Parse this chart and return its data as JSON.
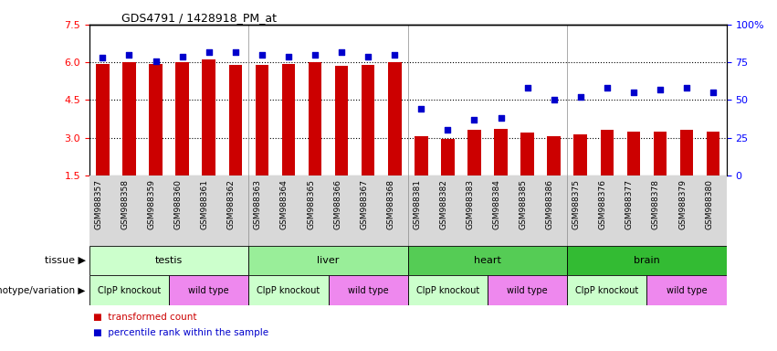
{
  "title": "GDS4791 / 1428918_PM_at",
  "samples": [
    "GSM988357",
    "GSM988358",
    "GSM988359",
    "GSM988360",
    "GSM988361",
    "GSM988362",
    "GSM988363",
    "GSM988364",
    "GSM988365",
    "GSM988366",
    "GSM988367",
    "GSM988368",
    "GSM988381",
    "GSM988382",
    "GSM988383",
    "GSM988384",
    "GSM988385",
    "GSM988386",
    "GSM988375",
    "GSM988376",
    "GSM988377",
    "GSM988378",
    "GSM988379",
    "GSM988380"
  ],
  "bar_values": [
    5.95,
    6.0,
    5.95,
    6.0,
    6.1,
    5.9,
    5.9,
    5.95,
    6.0,
    5.85,
    5.9,
    6.0,
    3.05,
    2.95,
    3.3,
    3.35,
    3.2,
    3.05,
    3.15,
    3.3,
    3.25,
    3.25,
    3.3,
    3.25
  ],
  "percentile_values": [
    78,
    80,
    76,
    79,
    82,
    82,
    80,
    79,
    80,
    82,
    79,
    80,
    44,
    30,
    37,
    38,
    58,
    50,
    52,
    58,
    55,
    57,
    58,
    55
  ],
  "ylim_left": [
    1.5,
    7.5
  ],
  "ylim_right": [
    0,
    100
  ],
  "yticks_left": [
    1.5,
    3.0,
    4.5,
    6.0,
    7.5
  ],
  "yticks_right": [
    0,
    25,
    50,
    75,
    100
  ],
  "ytick_labels_right": [
    "0",
    "25",
    "50",
    "75",
    "100%"
  ],
  "bar_color": "#cc0000",
  "dot_color": "#0000cc",
  "bar_width": 0.5,
  "background_color": "#ffffff",
  "tissue_groups": [
    {
      "label": "testis",
      "start": 0,
      "end": 5,
      "color": "#ccffcc"
    },
    {
      "label": "liver",
      "start": 6,
      "end": 11,
      "color": "#99ee99"
    },
    {
      "label": "heart",
      "start": 12,
      "end": 17,
      "color": "#55cc55"
    },
    {
      "label": "brain",
      "start": 18,
      "end": 23,
      "color": "#33bb33"
    }
  ],
  "geno_groups": [
    {
      "label": "ClpP knockout",
      "start": 0,
      "end": 2,
      "color": "#ccffcc"
    },
    {
      "label": "wild type",
      "start": 3,
      "end": 5,
      "color": "#ee88ee"
    },
    {
      "label": "ClpP knockout",
      "start": 6,
      "end": 8,
      "color": "#ccffcc"
    },
    {
      "label": "wild type",
      "start": 9,
      "end": 11,
      "color": "#ee88ee"
    },
    {
      "label": "ClpP knockout",
      "start": 12,
      "end": 14,
      "color": "#ccffcc"
    },
    {
      "label": "wild type",
      "start": 15,
      "end": 17,
      "color": "#ee88ee"
    },
    {
      "label": "ClpP knockout",
      "start": 18,
      "end": 20,
      "color": "#ccffcc"
    },
    {
      "label": "wild type",
      "start": 21,
      "end": 23,
      "color": "#ee88ee"
    }
  ],
  "tissue_row_label": "tissue",
  "genotype_row_label": "genotype/variation",
  "legend_bar": "transformed count",
  "legend_dot": "percentile rank within the sample",
  "grid_yticks": [
    3.0,
    4.5,
    6.0
  ]
}
